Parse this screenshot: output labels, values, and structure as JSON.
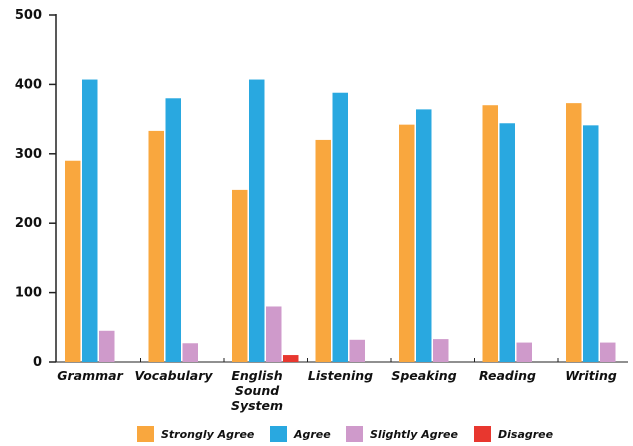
{
  "chart_data": {
    "type": "bar",
    "categories": [
      "Grammar",
      "Vocabulary",
      "English Sound System",
      "Listening",
      "Speaking",
      "Reading",
      "Writing"
    ],
    "category_lines": [
      [
        "Grammar"
      ],
      [
        "Vocabulary"
      ],
      [
        "English",
        "Sound",
        "System"
      ],
      [
        "Listening"
      ],
      [
        "Speaking"
      ],
      [
        "Reading"
      ],
      [
        "Writing"
      ]
    ],
    "series": [
      {
        "name": "Strongly Agree",
        "color": "#F9A73E",
        "values": [
          290,
          333,
          248,
          320,
          342,
          370,
          373
        ]
      },
      {
        "name": "Agree",
        "color": "#29A8E0",
        "values": [
          407,
          380,
          407,
          388,
          364,
          344,
          341
        ]
      },
      {
        "name": "Slightly Agree",
        "color": "#CF9ACB",
        "values": [
          45,
          27,
          80,
          32,
          33,
          28,
          28
        ]
      },
      {
        "name": "Disagree",
        "color": "#E8372F",
        "values": [
          0,
          0,
          10,
          0,
          0,
          0,
          0
        ]
      }
    ],
    "y_ticks": [
      "0",
      "100",
      "200",
      "300",
      "400",
      "500"
    ],
    "ylim": [
      0,
      500
    ],
    "grid": false,
    "legend_position": "bottom"
  }
}
